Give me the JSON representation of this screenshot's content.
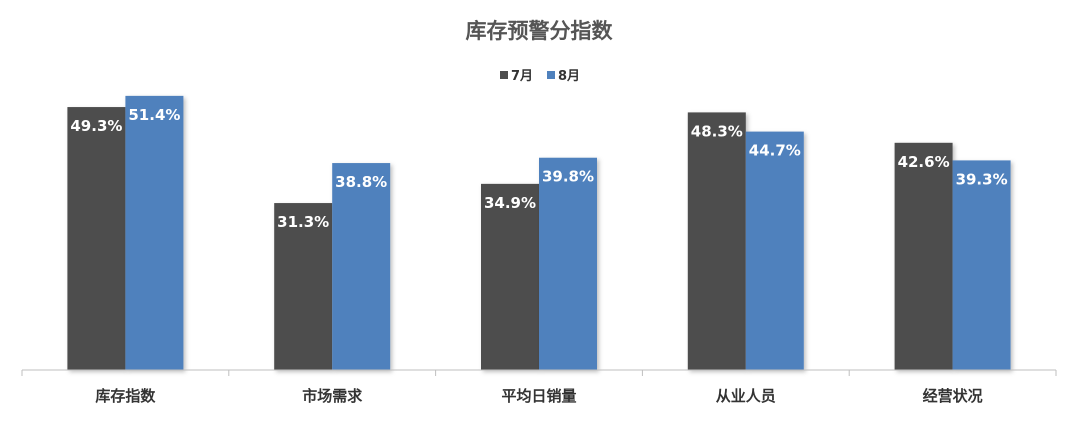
{
  "chart_data": {
    "type": "bar",
    "title": "库存预警分指数",
    "categories": [
      "库存指数",
      "市场需求",
      "平均日销量",
      "从业人员",
      "经营状况"
    ],
    "series": [
      {
        "name": "7月",
        "color": "#4d4d4d",
        "values": [
          49.3,
          31.3,
          34.9,
          48.3,
          42.6
        ],
        "labels": [
          "49.3%",
          "31.3%",
          "34.9%",
          "48.3%",
          "42.6%"
        ]
      },
      {
        "name": "8月",
        "color": "#4f81bd",
        "values": [
          51.4,
          38.8,
          39.8,
          44.7,
          39.3
        ],
        "labels": [
          "51.4%",
          "38.8%",
          "39.8%",
          "44.7%",
          "39.3%"
        ]
      }
    ],
    "ylim": [
      0,
      60
    ],
    "legend": "top-center",
    "grid": false
  }
}
